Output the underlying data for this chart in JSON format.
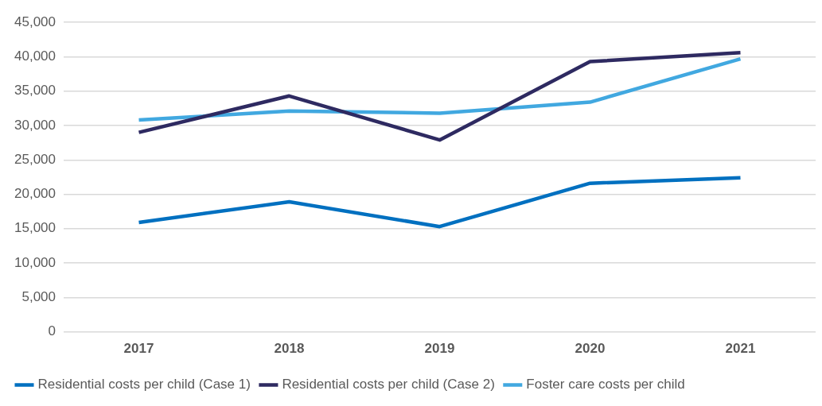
{
  "chart_data": {
    "type": "line",
    "categories": [
      "2017",
      "2018",
      "2019",
      "2020",
      "2021"
    ],
    "series": [
      {
        "name": "Residential costs per child (Case 1)",
        "color": "#0070c0",
        "values": [
          15900,
          18900,
          15300,
          21600,
          22400
        ]
      },
      {
        "name": "Residential costs per child (Case 2)",
        "color": "#2e2a61",
        "values": [
          29000,
          34300,
          27900,
          39300,
          40600
        ]
      },
      {
        "name": "Foster care costs per child",
        "color": "#41a8e0",
        "values": [
          30800,
          32100,
          31800,
          33400,
          39700
        ]
      }
    ],
    "ylim": [
      0,
      45000
    ],
    "yticks": [
      0,
      {
        "value": 5000,
        "label": "5,000"
      },
      {
        "value": 10000,
        "label": "10,000"
      },
      {
        "value": 15000,
        "label": "15,000"
      },
      {
        "value": 20000,
        "label": "20,000"
      },
      {
        "value": 25000,
        "label": "25,000"
      },
      {
        "value": 30000,
        "label": "30,000"
      },
      {
        "value": 35000,
        "label": "35,000"
      },
      {
        "value": 40000,
        "label": "40,000"
      },
      {
        "value": 45000,
        "label": "45,000"
      }
    ],
    "grid": "y",
    "legend": "bottom",
    "marker": "none",
    "line_style": "solid"
  }
}
